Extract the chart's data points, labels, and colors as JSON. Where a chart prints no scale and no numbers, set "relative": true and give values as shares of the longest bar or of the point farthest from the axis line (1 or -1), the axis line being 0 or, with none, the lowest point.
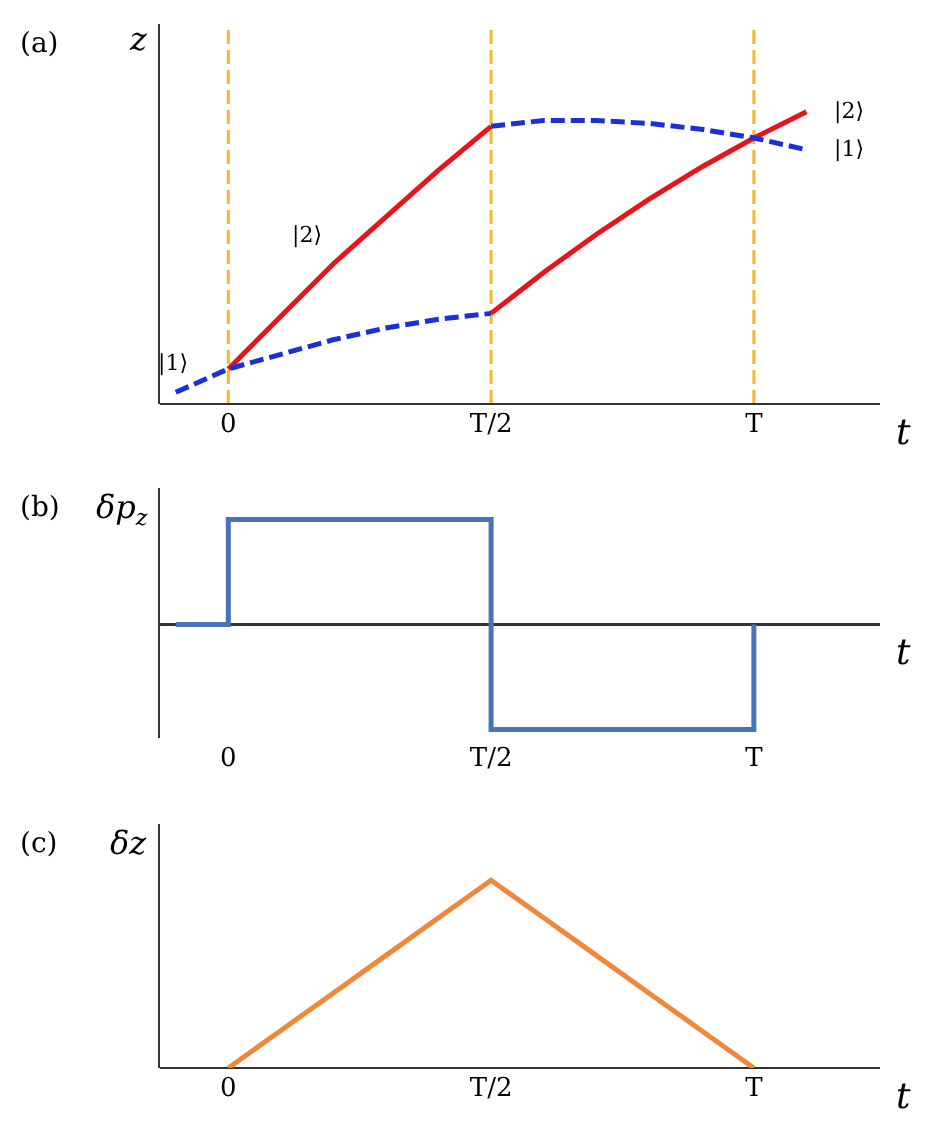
{
  "chart_data": [
    {
      "type": "line",
      "relative": true,
      "annotations": [
        "(a)"
      ],
      "ylabel": "z",
      "xlabel": "t",
      "categories": [
        null,
        "0",
        null,
        null,
        null,
        null,
        "T/2",
        null,
        null,
        null,
        null,
        "T",
        null
      ],
      "series": [
        {
          "name": "|2⟩",
          "color": "#e8141c",
          "line_style": "solid",
          "values": [
            null,
            0.12,
            0.3,
            0.48,
            0.64,
            0.8,
            0.95,
            null,
            null,
            null,
            null,
            null,
            null
          ]
        },
        {
          "name": "|2⟩",
          "color": "#e8141c",
          "line_style": "solid",
          "values": [
            null,
            null,
            null,
            null,
            null,
            null,
            0.31,
            0.45,
            0.58,
            0.7,
            0.81,
            0.91,
            1.0
          ]
        },
        {
          "name": "|1⟩",
          "color": "#1a2fd6",
          "line_style": "dashed",
          "values": [
            0.04,
            0.12,
            0.17,
            0.22,
            0.26,
            0.29,
            0.31,
            null,
            null,
            null,
            null,
            null,
            null
          ]
        },
        {
          "name": "|1⟩",
          "color": "#1a2fd6",
          "line_style": "dashed",
          "values": [
            null,
            null,
            null,
            null,
            null,
            null,
            0.95,
            0.97,
            0.97,
            0.96,
            0.94,
            0.91,
            0.87
          ]
        }
      ],
      "ref_lines": [
        {
          "axis": "x",
          "value": "0",
          "color": "#f5b731",
          "line_style": "dashed"
        },
        {
          "axis": "x",
          "value": "T/2",
          "color": "#f5b731",
          "line_style": "dashed"
        },
        {
          "axis": "x",
          "value": "T",
          "color": "#f5b731",
          "line_style": "dashed"
        }
      ]
    },
    {
      "type": "step",
      "relative": true,
      "annotations": [
        "(b)"
      ],
      "ylabel": "δp$_{z}$",
      "xlabel": "t",
      "categories": [
        null,
        "0",
        null,
        null,
        null,
        null,
        "T/2",
        null,
        null,
        null,
        null,
        "T",
        null
      ],
      "series": [
        {
          "color": "#4a72b8",
          "values": [
            0,
            1,
            1,
            1,
            1,
            1,
            -1,
            -1,
            -1,
            -1,
            -1,
            0,
            null
          ]
        }
      ]
    },
    {
      "type": "line",
      "relative": true,
      "annotations": [
        "(c)"
      ],
      "ylabel": "δz",
      "xlabel": "t",
      "categories": [
        null,
        "0",
        null,
        null,
        null,
        null,
        "T/2",
        null,
        null,
        null,
        null,
        "T",
        null
      ],
      "series": [
        {
          "color": "#f0883a",
          "values": [
            null,
            0,
            0.2,
            0.4,
            0.6,
            0.8,
            1,
            0.8,
            0.6,
            0.4,
            0.2,
            0,
            null
          ]
        }
      ]
    }
  ]
}
